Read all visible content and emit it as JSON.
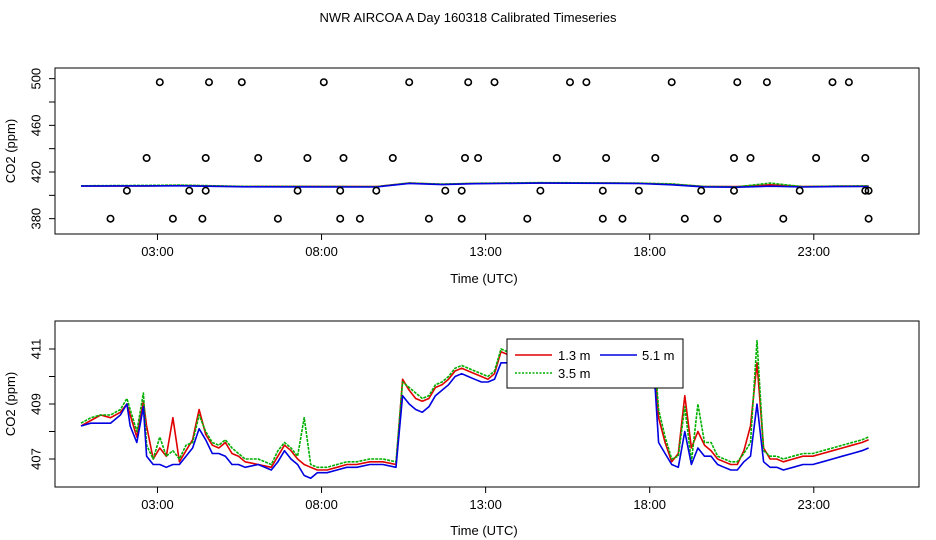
{
  "title": "NWR AIRCOA A  Day 160318  Calibrated Timeseries",
  "chart_data": [
    {
      "type": "line",
      "name": "top-panel",
      "xlabel": "Time (UTC)",
      "ylabel": "CO2 (ppm)",
      "xlim": [
        0,
        24.5
      ],
      "ylim": [
        372,
        504
      ],
      "xticks": [
        2.33,
        7.33,
        12.33,
        17.33,
        22.33
      ],
      "xtick_labels": [
        "03:00",
        "08:00",
        "13:00",
        "18:00",
        "23:00"
      ],
      "yticks": [
        380,
        420,
        460,
        500
      ],
      "ytick_labels": [
        "380",
        "420",
        "460",
        "500"
      ],
      "yminor": [
        400,
        440,
        480
      ],
      "colors": {
        "red": "#e00000",
        "green": "#00b000",
        "blue": "#0000e0"
      },
      "series": [
        {
          "name": "1.3 m",
          "color": "#e00000",
          "x": [
            0,
            2,
            3,
            5,
            7,
            9,
            10,
            11,
            12,
            14,
            16,
            17,
            18,
            19,
            20,
            21,
            22,
            23,
            24
          ],
          "values": [
            408,
            408,
            408.5,
            407.6,
            407.7,
            407.5,
            410.5,
            409.5,
            410.2,
            410.7,
            410.5,
            410.3,
            409.5,
            407.5,
            407.5,
            409,
            407.5,
            407.8,
            408
          ]
        },
        {
          "name": "3.5 m",
          "color": "#00b000",
          "x": [
            0,
            2,
            3,
            5,
            7,
            9,
            10,
            11,
            12,
            14,
            16,
            17,
            18,
            19,
            20,
            21,
            22,
            23,
            24
          ],
          "values": [
            408.2,
            408.5,
            408.8,
            407.7,
            407.6,
            407.4,
            410.6,
            409.6,
            410.3,
            410.9,
            410.7,
            410.5,
            409.8,
            407.6,
            407.3,
            410.5,
            407.4,
            407.9,
            408.1
          ]
        },
        {
          "name": "5.1 m",
          "color": "#0000e0",
          "x": [
            0,
            2,
            3,
            5,
            7,
            9,
            10,
            11,
            12,
            14,
            16,
            17,
            18,
            19,
            20,
            21,
            22,
            23,
            24
          ],
          "values": [
            407.9,
            408.1,
            408.2,
            407.3,
            407.2,
            407.1,
            410.2,
            409.2,
            410,
            410.5,
            410.3,
            410.1,
            409,
            407.2,
            407,
            407.8,
            407.1,
            407.5,
            407.6
          ]
        }
      ],
      "markers": {
        "x": [
          0.9,
          1.4,
          2.0,
          2.4,
          2.8,
          3.3,
          3.7,
          3.8,
          3.8,
          3.9,
          4.9,
          5.4,
          6.0,
          6.6,
          6.9,
          7.4,
          7.9,
          7.9,
          8.0,
          8.5,
          9.0,
          9.5,
          10.0,
          10.6,
          11.1,
          11.6,
          11.6,
          11.7,
          11.8,
          12.1,
          12.6,
          13.6,
          14.0,
          14.5,
          14.9,
          15.4,
          15.9,
          15.9,
          16.0,
          16.5,
          17.0,
          17.5,
          18.0,
          18.4,
          18.9,
          19.4,
          19.9,
          19.9,
          20.0,
          20.4,
          20.9,
          21.4,
          21.9,
          22.4,
          22.9,
          23.4,
          23.9,
          23.9,
          24.0,
          24.0
        ],
        "values": [
          380,
          404,
          432,
          497,
          380,
          404,
          380,
          404,
          432,
          497,
          497,
          432,
          380,
          404,
          432,
          497,
          380,
          404,
          432,
          380,
          404,
          432,
          497,
          380,
          404,
          380,
          404,
          432,
          497,
          432,
          497,
          380,
          404,
          432,
          497,
          497,
          380,
          404,
          432,
          380,
          404,
          432,
          497,
          380,
          404,
          380,
          404,
          432,
          497,
          432,
          497,
          380,
          404,
          432,
          497,
          497,
          404,
          432,
          380,
          404
        ]
      }
    },
    {
      "type": "line",
      "name": "bottom-panel",
      "xlabel": "Time (UTC)",
      "ylabel": "CO2 (ppm)",
      "xlim": [
        0,
        24.5
      ],
      "ylim": [
        406.2,
        411.8
      ],
      "xticks": [
        2.33,
        7.33,
        12.33,
        17.33,
        22.33
      ],
      "xtick_labels": [
        "03:00",
        "08:00",
        "13:00",
        "18:00",
        "23:00"
      ],
      "yticks": [
        407,
        409,
        411
      ],
      "ytick_labels": [
        "407",
        "409",
        "411"
      ],
      "yminor": [
        408,
        410
      ],
      "legend": {
        "position": "top-center",
        "entries": [
          "1.3 m",
          "3.5 m",
          "5.1 m"
        ]
      },
      "series": [
        {
          "name": "1.3 m",
          "color": "#e00000",
          "x": [
            0,
            0.3,
            0.6,
            0.9,
            1.2,
            1.4,
            1.5,
            1.7,
            1.9,
            2.0,
            2.2,
            2.4,
            2.6,
            2.8,
            3.0,
            3.2,
            3.4,
            3.6,
            3.8,
            4.0,
            4.2,
            4.4,
            4.6,
            4.8,
            5.0,
            5.4,
            5.8,
            6.0,
            6.2,
            6.4,
            6.6,
            6.8,
            7.0,
            7.2,
            7.5,
            7.8,
            8.1,
            8.4,
            8.8,
            9.2,
            9.6,
            9.8,
            10.0,
            10.2,
            10.4,
            10.6,
            10.8,
            11.0,
            11.2,
            11.4,
            11.6,
            11.8,
            12.0,
            12.2,
            12.4,
            12.6,
            12.8,
            13.0,
            13.3,
            13.6,
            13.9,
            14.2,
            14.5,
            14.8,
            15.1,
            15.4,
            15.7,
            16.0,
            16.3,
            16.6,
            16.9,
            17.1,
            17.3,
            17.4,
            17.5,
            17.6,
            17.8,
            18.0,
            18.2,
            18.4,
            18.6,
            18.8,
            19.0,
            19.2,
            19.4,
            19.6,
            19.8,
            20.0,
            20.2,
            20.4,
            20.6,
            20.8,
            21.0,
            21.2,
            21.4,
            21.7,
            22.0,
            22.3,
            22.6,
            22.9,
            23.2,
            23.5,
            23.8,
            24.0
          ],
          "values": [
            408.2,
            408.4,
            408.6,
            408.5,
            408.7,
            409,
            408.6,
            407.8,
            409.1,
            408.2,
            407,
            407.4,
            407.1,
            408.5,
            406.9,
            407.3,
            407.7,
            408.8,
            407.9,
            407.5,
            407.4,
            407.6,
            407.2,
            407.1,
            406.9,
            406.8,
            406.7,
            407.1,
            407.5,
            407.3,
            407.0,
            406.8,
            406.7,
            406.6,
            406.6,
            406.7,
            406.8,
            406.8,
            406.9,
            406.9,
            406.8,
            409.9,
            409.5,
            409.2,
            409.1,
            409.2,
            409.6,
            409.7,
            409.9,
            410.2,
            410.3,
            410.2,
            410.1,
            410.0,
            409.9,
            410.1,
            410.9,
            410.8,
            410.9,
            410.7,
            410.8,
            411.0,
            410.6,
            411.2,
            410.9,
            411.3,
            411.1,
            411.0,
            411.2,
            411.0,
            410.9,
            411.0,
            411.1,
            410.8,
            410.2,
            408.5,
            407.6,
            406.9,
            407.2,
            409.3,
            407.4,
            408.0,
            407.5,
            407.3,
            407.0,
            406.9,
            406.8,
            406.8,
            407.3,
            408.2,
            410.5,
            407.4,
            407.0,
            407.0,
            406.9,
            407.0,
            407.1,
            407.1,
            407.2,
            407.3,
            407.4,
            407.5,
            407.6,
            407.7
          ]
        },
        {
          "name": "3.5 m",
          "color": "#00b000",
          "x": [
            0,
            0.3,
            0.6,
            0.9,
            1.2,
            1.4,
            1.5,
            1.7,
            1.9,
            2.0,
            2.2,
            2.4,
            2.6,
            2.8,
            3.0,
            3.2,
            3.4,
            3.6,
            3.8,
            4.0,
            4.2,
            4.4,
            4.6,
            4.8,
            5.0,
            5.4,
            5.8,
            6.0,
            6.2,
            6.4,
            6.6,
            6.8,
            7.0,
            7.2,
            7.5,
            7.8,
            8.1,
            8.4,
            8.8,
            9.2,
            9.6,
            9.8,
            10.0,
            10.2,
            10.4,
            10.6,
            10.8,
            11.0,
            11.2,
            11.4,
            11.6,
            11.8,
            12.0,
            12.2,
            12.4,
            12.6,
            12.8,
            13.0,
            13.3,
            13.6,
            13.9,
            14.2,
            14.5,
            14.8,
            15.1,
            15.4,
            15.7,
            16.0,
            16.3,
            16.6,
            16.9,
            17.1,
            17.3,
            17.4,
            17.5,
            17.6,
            17.8,
            18.0,
            18.2,
            18.4,
            18.6,
            18.8,
            19.0,
            19.2,
            19.4,
            19.6,
            19.8,
            20.0,
            20.2,
            20.4,
            20.6,
            20.8,
            21.0,
            21.2,
            21.4,
            21.7,
            22.0,
            22.3,
            22.6,
            22.9,
            23.2,
            23.5,
            23.8,
            24.0
          ],
          "values": [
            408.3,
            408.5,
            408.6,
            408.6,
            408.8,
            409.2,
            408.8,
            408.0,
            409.4,
            407.5,
            407.0,
            407.8,
            407.1,
            407.3,
            407.0,
            407.5,
            407.6,
            408.6,
            408.0,
            407.6,
            407.5,
            407.7,
            407.4,
            407.2,
            407.0,
            407.0,
            406.8,
            407.3,
            407.6,
            407.4,
            407.1,
            408.5,
            406.8,
            406.7,
            406.7,
            406.8,
            406.9,
            406.9,
            407.0,
            407.0,
            406.9,
            409.8,
            409.6,
            409.4,
            409.2,
            409.3,
            409.7,
            409.8,
            410.0,
            410.3,
            410.4,
            410.3,
            410.2,
            410.1,
            410.0,
            410.2,
            411.0,
            410.9,
            411.0,
            410.8,
            410.9,
            411.1,
            410.7,
            411.1,
            411.0,
            411.2,
            411.2,
            411.1,
            411.2,
            411.1,
            411.0,
            411.1,
            411.2,
            410.9,
            410.4,
            408.8,
            407.8,
            407.0,
            407.1,
            408.9,
            406.9,
            409.0,
            407.6,
            407.6,
            407.1,
            407.0,
            406.9,
            406.9,
            407.2,
            407.6,
            411.3,
            407.3,
            407.1,
            407.1,
            407.0,
            407.1,
            407.2,
            407.2,
            407.3,
            407.4,
            407.5,
            407.6,
            407.7,
            407.8
          ]
        },
        {
          "name": "5.1 m",
          "color": "#0000e0",
          "x": [
            0,
            0.3,
            0.6,
            0.9,
            1.2,
            1.4,
            1.5,
            1.7,
            1.9,
            2.0,
            2.2,
            2.4,
            2.6,
            2.8,
            3.0,
            3.2,
            3.4,
            3.6,
            3.8,
            4.0,
            4.2,
            4.4,
            4.6,
            4.8,
            5.0,
            5.4,
            5.8,
            6.0,
            6.2,
            6.4,
            6.6,
            6.8,
            7.0,
            7.2,
            7.5,
            7.8,
            8.1,
            8.4,
            8.8,
            9.2,
            9.6,
            9.8,
            10.0,
            10.2,
            10.4,
            10.6,
            10.8,
            11.0,
            11.2,
            11.4,
            11.6,
            11.8,
            12.0,
            12.2,
            12.4,
            12.6,
            12.8,
            13.0,
            13.3,
            13.6,
            13.9,
            14.2,
            14.5,
            14.8,
            15.1,
            15.4,
            15.7,
            16.0,
            16.3,
            16.6,
            16.9,
            17.1,
            17.3,
            17.4,
            17.5,
            17.6,
            17.8,
            18.0,
            18.2,
            18.4,
            18.6,
            18.8,
            19.0,
            19.2,
            19.4,
            19.6,
            19.8,
            20.0,
            20.2,
            20.4,
            20.6,
            20.8,
            21.0,
            21.2,
            21.4,
            21.7,
            22.0,
            22.3,
            22.6,
            22.9,
            23.2,
            23.5,
            23.8,
            24.0
          ],
          "values": [
            408.2,
            408.3,
            408.3,
            408.3,
            408.6,
            409.0,
            408.2,
            407.6,
            408.9,
            407.1,
            406.8,
            406.8,
            406.7,
            406.8,
            406.8,
            407.1,
            407.4,
            408.1,
            407.7,
            407.2,
            407.2,
            407.1,
            406.8,
            406.8,
            406.7,
            406.8,
            406.6,
            406.9,
            407.3,
            407.0,
            406.8,
            406.4,
            406.3,
            406.5,
            406.5,
            406.6,
            406.7,
            406.7,
            406.8,
            406.8,
            406.7,
            409.3,
            409.0,
            408.8,
            408.7,
            408.9,
            409.3,
            409.5,
            409.7,
            410.0,
            410.1,
            410.0,
            409.9,
            409.8,
            409.8,
            409.9,
            410.5,
            410.5,
            410.7,
            410.4,
            410.6,
            410.7,
            410.3,
            410.9,
            410.6,
            411.0,
            410.8,
            410.7,
            410.9,
            410.7,
            410.6,
            410.7,
            410.8,
            410.4,
            409.5,
            407.6,
            407.2,
            406.8,
            406.7,
            408.0,
            406.8,
            407.4,
            407.1,
            407.1,
            406.8,
            406.7,
            406.6,
            406.6,
            406.9,
            407.1,
            409.0,
            406.9,
            406.7,
            406.7,
            406.6,
            406.7,
            406.8,
            406.8,
            406.9,
            407.0,
            407.1,
            407.2,
            407.3,
            407.4
          ]
        }
      ]
    }
  ]
}
